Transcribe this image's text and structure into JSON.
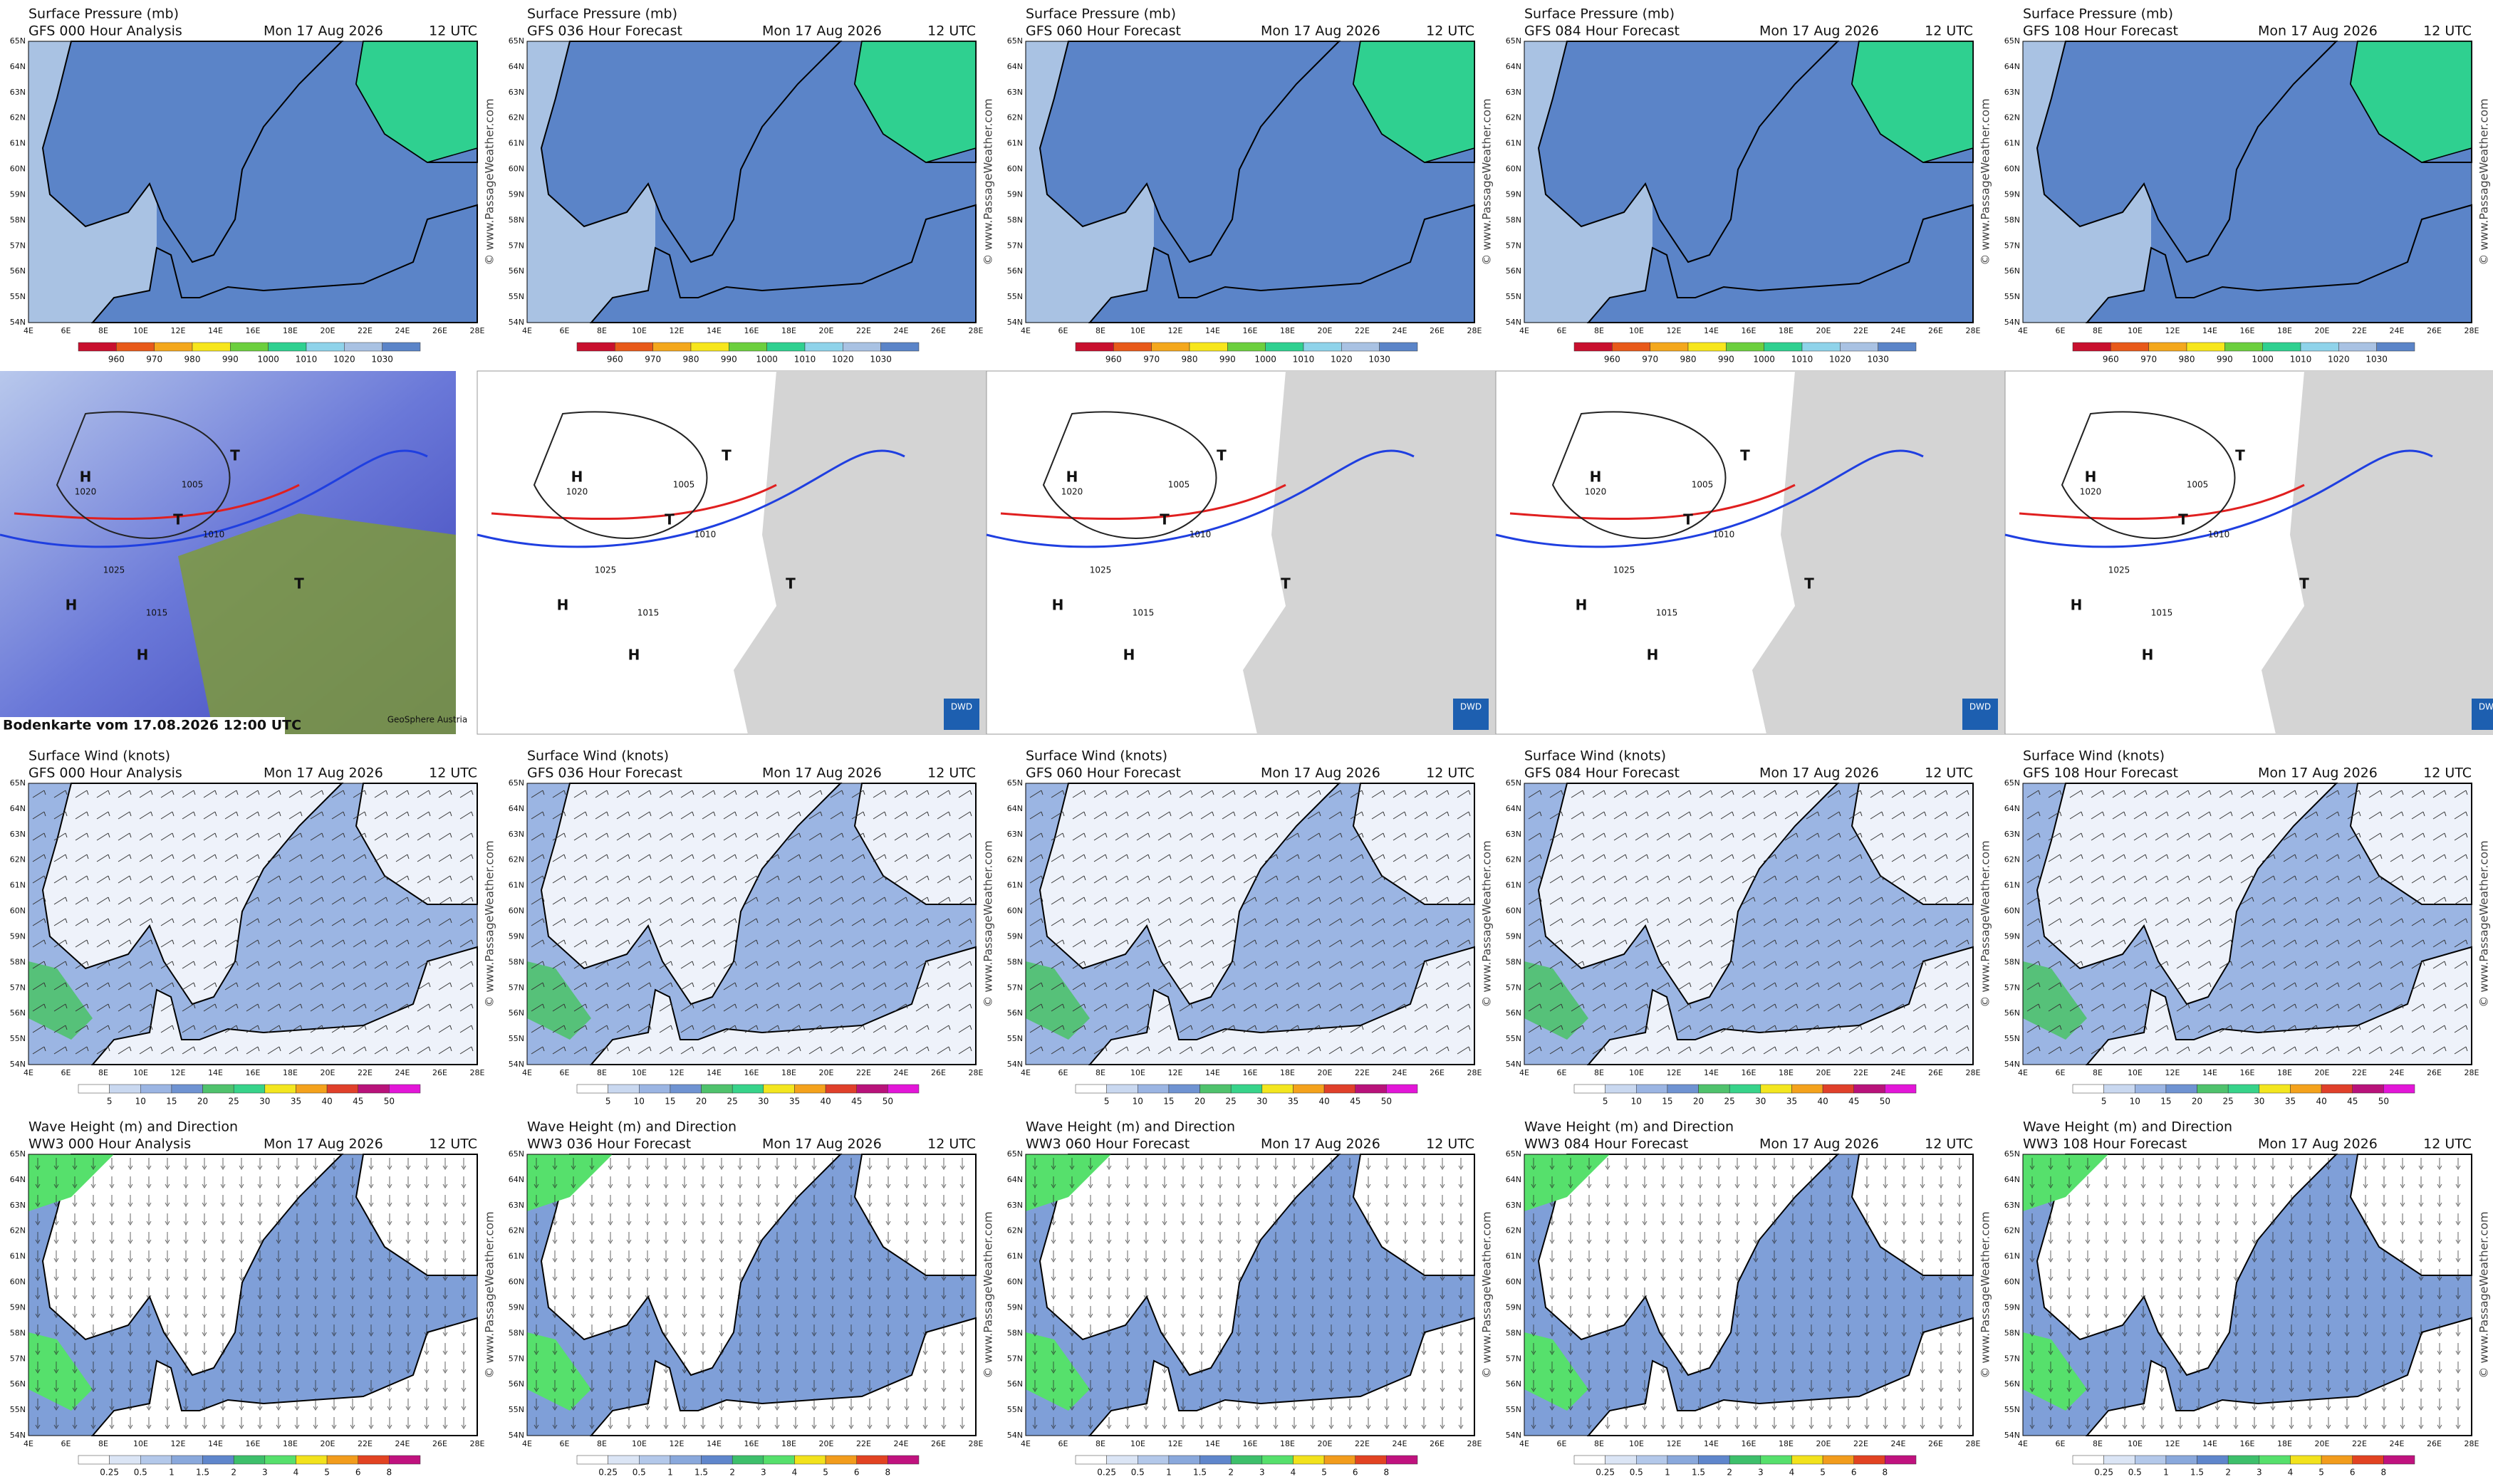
{
  "date": "Mon 17 Aug 2026",
  "time": "12 UTC",
  "watermark": "© www.PassageWeather.com",
  "lat_labels": [
    "65N",
    "64N",
    "63N",
    "62N",
    "61N",
    "60N",
    "59N",
    "58N",
    "57N",
    "56N",
    "55N",
    "54N"
  ],
  "lon_labels": [
    "4E",
    "6E",
    "8E",
    "10E",
    "12E",
    "14E",
    "16E",
    "18E",
    "20E",
    "22E",
    "24E",
    "26E",
    "28E"
  ],
  "pressure": {
    "title": "Surface Pressure (mb)",
    "models": [
      "GFS 000 Hour Analysis",
      "GFS 036 Hour Forecast",
      "GFS 060 Hour Forecast",
      "GFS 084 Hour Forecast",
      "GFS 108 Hour Forecast"
    ],
    "colorbar": [
      "960",
      "970",
      "980",
      "990",
      "1000",
      "1010",
      "1020",
      "1030"
    ]
  },
  "analysis": {
    "caption": "Bodenkarte vom 17.08.2026 12:00 UTC",
    "logo_first": "GeoSphere Austria",
    "logo": "DWD",
    "labels": [
      "H",
      "T",
      "H",
      "T",
      "H",
      "T",
      "1005",
      "1010",
      "1015",
      "1020",
      "1025"
    ]
  },
  "wind": {
    "title": "Surface Wind (knots)",
    "models": [
      "GFS 000 Hour Analysis",
      "GFS 036 Hour Forecast",
      "GFS 060 Hour Forecast",
      "GFS 084 Hour Forecast",
      "GFS 108 Hour Forecast"
    ],
    "colorbar": [
      "5",
      "10",
      "15",
      "20",
      "25",
      "30",
      "35",
      "40",
      "45",
      "50"
    ]
  },
  "waves": {
    "title": "Wave Height (m) and Direction",
    "models": [
      "WW3 000 Hour Analysis",
      "WW3 036 Hour Forecast",
      "WW3 060 Hour Forecast",
      "WW3 084 Hour Forecast",
      "WW3 108 Hour Forecast"
    ],
    "colorbar": [
      "0.25",
      "0.5",
      "1",
      "1.5",
      "2",
      "3",
      "4",
      "5",
      "6",
      "8"
    ]
  }
}
